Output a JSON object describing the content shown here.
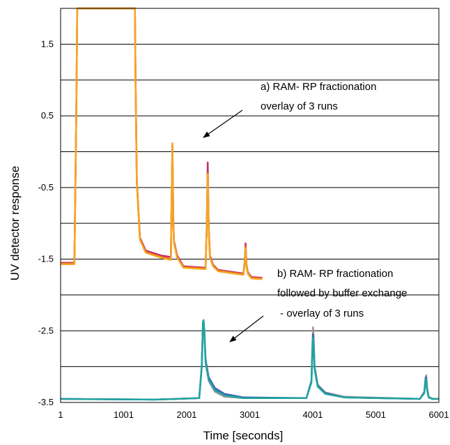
{
  "chart_data": {
    "type": "line",
    "title": "",
    "xlabel": "Time [seconds]",
    "ylabel": "UV detector response",
    "xlim": [
      1,
      6001
    ],
    "ylim": [
      -3.5,
      2.0
    ],
    "x_ticks": [
      "1",
      "1001",
      "2001",
      "3001",
      "4001",
      "5001",
      "6001"
    ],
    "x_tick_values": [
      1,
      1001,
      2001,
      3001,
      4001,
      5001,
      6001
    ],
    "y_ticks": [
      "1.5",
      "0.5",
      "-0.5",
      "-1.5",
      "-2.5",
      "-3.5"
    ],
    "y_tick_values": [
      1.5,
      0.5,
      -0.5,
      -1.5,
      -2.5,
      -3.5
    ],
    "gridlines_y": [
      2.0,
      1.5,
      1.0,
      0.5,
      0.0,
      -0.5,
      -1.0,
      -1.5,
      -2.0,
      -2.5,
      -3.0,
      -3.5
    ],
    "grid": true,
    "colors": {
      "run_a1": "#c0306e",
      "run_a2": "#e8611a",
      "run_a3": "#f5a623",
      "run_b1": "#9a9a9a",
      "run_b2": "#3a5fb0",
      "run_b3": "#1fa5a0"
    },
    "annotations": [
      {
        "lines": [
          "a) RAM- RP fractionation",
          "overlay of 3 runs"
        ]
      },
      {
        "lines": [
          "b) RAM- RP fractionation",
          "followed by buffer exchange",
          " - overlay of 3 runs"
        ]
      }
    ],
    "series": [
      {
        "color_key": "run_a1",
        "x": [
          1,
          200,
          220,
          250,
          265,
          1180,
          1190,
          1210,
          1260,
          1350,
          1600,
          1750,
          1760,
          1775,
          1790,
          1800,
          1850,
          1950,
          2300,
          2320,
          2335,
          2350,
          2370,
          2420,
          2500,
          2900,
          2920,
          2935,
          2950,
          2970,
          3000,
          3030,
          3200
        ],
        "y": [
          -1.55,
          -1.55,
          -1.55,
          0.5,
          2.0,
          2.0,
          1.0,
          -0.4,
          -1.2,
          -1.38,
          -1.45,
          -1.47,
          -0.8,
          0.1,
          -1.0,
          -1.25,
          -1.45,
          -1.6,
          -1.62,
          -1.0,
          -0.15,
          -1.05,
          -1.45,
          -1.58,
          -1.65,
          -1.7,
          -1.55,
          -1.28,
          -1.58,
          -1.68,
          -1.72,
          -1.75,
          -1.76
        ]
      },
      {
        "color_key": "run_a2",
        "x": [
          1,
          200,
          220,
          250,
          265,
          1180,
          1190,
          1210,
          1260,
          1350,
          1600,
          1750,
          1760,
          1775,
          1790,
          1800,
          1850,
          1950,
          2300,
          2320,
          2335,
          2350,
          2370,
          2420,
          2500,
          2900,
          2920,
          2935,
          2950,
          2970,
          3000,
          3030,
          3200
        ],
        "y": [
          -1.56,
          -1.56,
          -1.56,
          0.5,
          2.0,
          2.0,
          1.0,
          -0.42,
          -1.22,
          -1.4,
          -1.47,
          -1.5,
          -0.82,
          0.05,
          -1.02,
          -1.27,
          -1.47,
          -1.61,
          -1.63,
          -1.02,
          -0.3,
          -1.08,
          -1.47,
          -1.59,
          -1.66,
          -1.71,
          -1.57,
          -1.32,
          -1.6,
          -1.69,
          -1.73,
          -1.76,
          -1.77
        ]
      },
      {
        "color_key": "run_a3",
        "x": [
          1,
          200,
          220,
          250,
          265,
          1180,
          1190,
          1210,
          1260,
          1350,
          1600,
          1750,
          1760,
          1775,
          1790,
          1800,
          1850,
          1950,
          2300,
          2320,
          2335,
          2350,
          2370,
          2420,
          2500,
          2900,
          2920,
          2935,
          2950,
          2970,
          3000,
          3030,
          3200
        ],
        "y": [
          -1.57,
          -1.57,
          -1.57,
          0.5,
          2.0,
          2.0,
          1.0,
          -0.43,
          -1.23,
          -1.41,
          -1.48,
          -1.51,
          -0.83,
          0.12,
          -1.03,
          -1.28,
          -1.48,
          -1.62,
          -1.64,
          -1.03,
          -0.32,
          -1.09,
          -1.48,
          -1.6,
          -1.67,
          -1.72,
          -1.58,
          -1.35,
          -1.61,
          -1.7,
          -1.74,
          -1.77,
          -1.78
        ]
      },
      {
        "color_key": "run_b1",
        "x": [
          1,
          1500,
          2200,
          2240,
          2260,
          2270,
          2285,
          2300,
          2350,
          2450,
          2600,
          2900,
          3900,
          3980,
          3995,
          4005,
          4015,
          4030,
          4080,
          4200,
          4500,
          5700,
          5770,
          5790,
          5800,
          5815,
          5840,
          5900,
          6001
        ],
        "y": [
          -3.45,
          -3.46,
          -3.44,
          -3.0,
          -2.45,
          -2.42,
          -2.6,
          -2.95,
          -3.2,
          -3.35,
          -3.42,
          -3.44,
          -3.44,
          -3.2,
          -2.7,
          -2.45,
          -2.6,
          -3.0,
          -3.25,
          -3.36,
          -3.42,
          -3.45,
          -3.35,
          -3.15,
          -3.12,
          -3.3,
          -3.42,
          -3.45,
          -3.45
        ]
      },
      {
        "color_key": "run_b2",
        "x": [
          1,
          1500,
          2200,
          2240,
          2260,
          2270,
          2285,
          2300,
          2350,
          2450,
          2600,
          2900,
          3900,
          3980,
          3995,
          4005,
          4015,
          4030,
          4080,
          4200,
          4500,
          5700,
          5770,
          5790,
          5800,
          5815,
          5840,
          5900,
          6001
        ],
        "y": [
          -3.45,
          -3.46,
          -3.44,
          -3.0,
          -2.4,
          -2.38,
          -2.58,
          -2.9,
          -3.15,
          -3.3,
          -3.38,
          -3.43,
          -3.44,
          -3.2,
          -2.75,
          -2.55,
          -2.68,
          -3.02,
          -3.27,
          -3.37,
          -3.43,
          -3.45,
          -3.36,
          -3.18,
          -3.15,
          -3.32,
          -3.43,
          -3.45,
          -3.45
        ]
      },
      {
        "color_key": "run_b3",
        "x": [
          1,
          1500,
          2200,
          2240,
          2260,
          2270,
          2285,
          2300,
          2350,
          2450,
          2600,
          2900,
          3900,
          3980,
          3995,
          4005,
          4015,
          4030,
          4080,
          4200,
          4500,
          5700,
          5770,
          5790,
          5800,
          5815,
          5840,
          5900,
          6001
        ],
        "y": [
          -3.45,
          -3.46,
          -3.44,
          -3.0,
          -2.37,
          -2.35,
          -2.55,
          -2.93,
          -3.18,
          -3.33,
          -3.4,
          -3.44,
          -3.44,
          -3.22,
          -2.8,
          -2.6,
          -2.7,
          -3.04,
          -3.28,
          -3.38,
          -3.43,
          -3.45,
          -3.37,
          -3.2,
          -3.17,
          -3.33,
          -3.43,
          -3.45,
          -3.45
        ]
      }
    ]
  }
}
